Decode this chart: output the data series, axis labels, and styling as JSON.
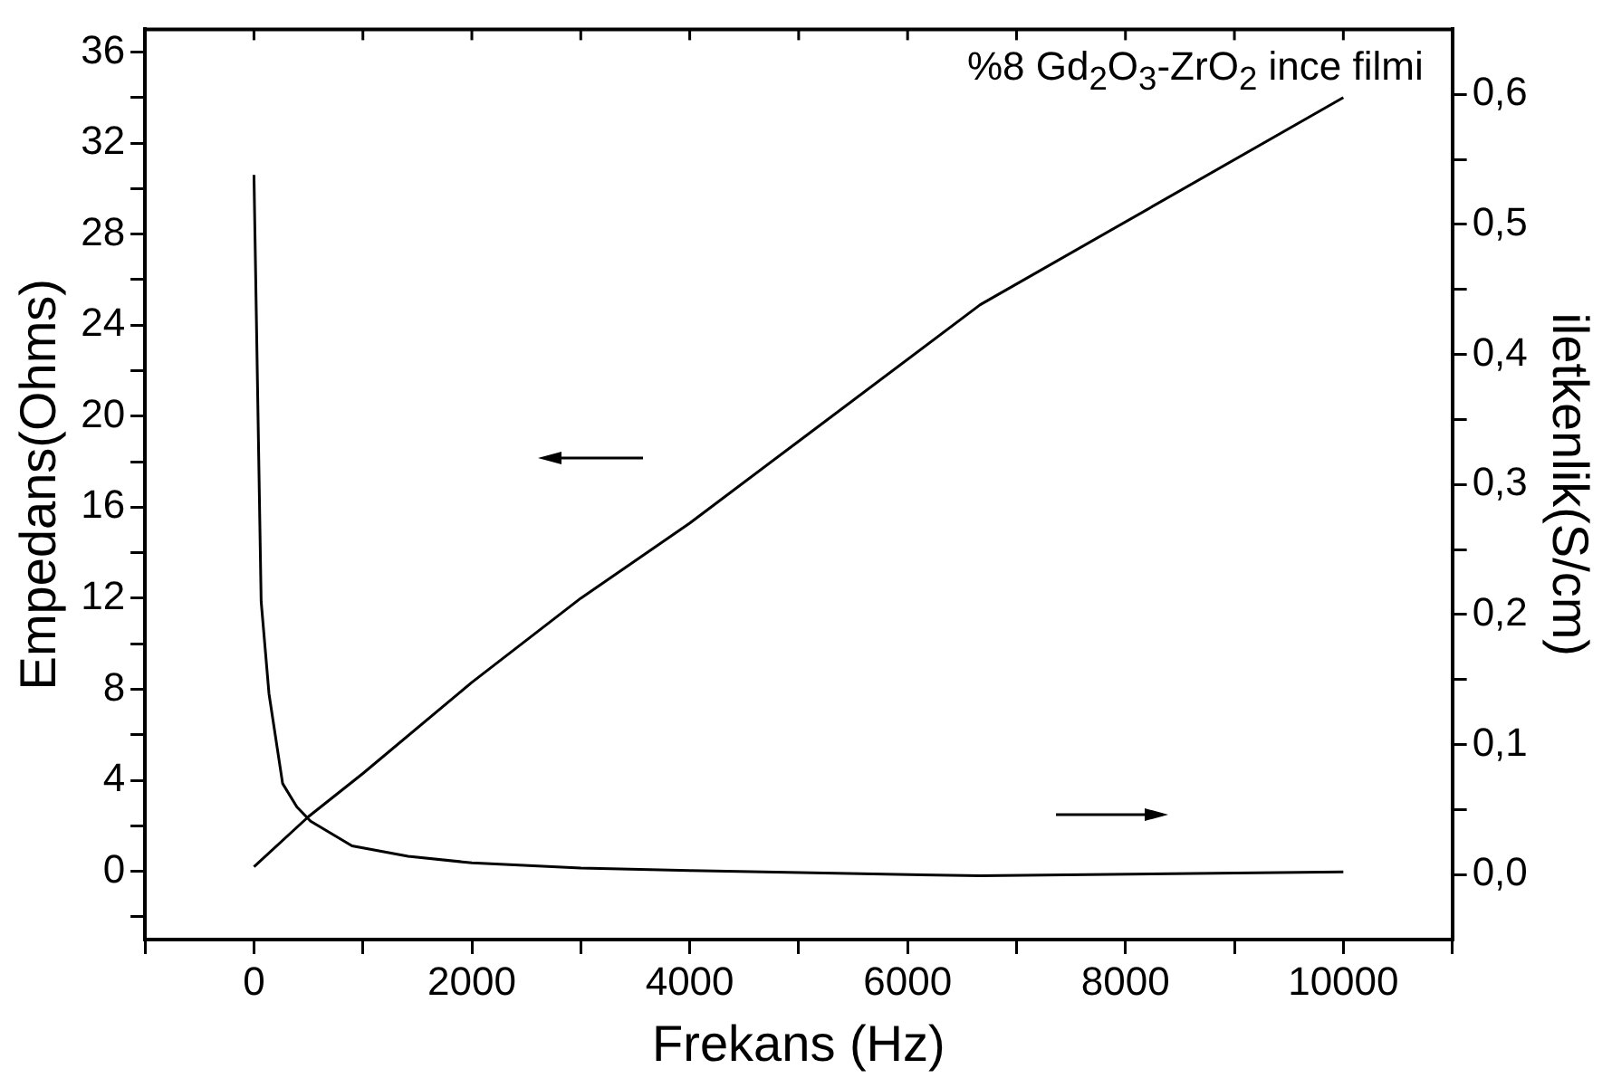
{
  "chart_data": {
    "type": "line",
    "xlabel": "Frekans (Hz)",
    "ylabel": "Empedans(Ohms)",
    "y2label": "iletkenlik(S/cm)",
    "annotations": [
      "%8 Gd$_{2}$O$_{3}$-ZrO$_{2}$ ince filmi"
    ],
    "xlim": [
      -1000,
      11000
    ],
    "xticks": [
      {
        "value": -1000,
        "label": null
      },
      0,
      {
        "value": 1000,
        "label": null
      },
      2000,
      {
        "value": 3000,
        "label": null
      },
      4000,
      {
        "value": 5000,
        "label": null
      },
      6000,
      {
        "value": 7000,
        "label": null
      },
      8000,
      {
        "value": 9000,
        "label": null
      },
      10000,
      {
        "value": 11000,
        "label": null
      }
    ],
    "ylim": [
      -3,
      37
    ],
    "yticks": [
      {
        "value": -2,
        "label": null
      },
      0,
      {
        "value": 2,
        "label": null
      },
      4,
      {
        "value": 6,
        "label": null
      },
      8,
      {
        "value": 10,
        "label": null
      },
      12,
      {
        "value": 14,
        "label": null
      },
      16,
      {
        "value": 18,
        "label": null
      },
      20,
      {
        "value": 22,
        "label": null
      },
      24,
      {
        "value": 26,
        "label": null
      },
      28,
      {
        "value": 30,
        "label": null
      },
      32,
      {
        "value": 34,
        "label": null
      },
      36
    ],
    "y2lim": [
      -0.05,
      0.65
    ],
    "y2ticks": [
      {
        "value": 0,
        "label": "0,0"
      },
      {
        "value": 0.05,
        "label": null
      },
      {
        "value": 0.1,
        "label": "0,1"
      },
      {
        "value": 0.15,
        "label": null
      },
      {
        "value": 0.2,
        "label": "0,2"
      },
      {
        "value": 0.25,
        "label": null
      },
      {
        "value": 0.3,
        "label": "0,3"
      },
      {
        "value": 0.35,
        "label": null
      },
      {
        "value": 0.4,
        "label": "0,4"
      },
      {
        "value": 0.45,
        "label": null
      },
      {
        "value": 0.5,
        "label": "0,5"
      },
      {
        "value": 0.55,
        "label": null
      },
      {
        "value": 0.6,
        "label": "0,6"
      }
    ],
    "grid": false,
    "legend": false,
    "marker": "none",
    "line_style": "solid",
    "series": [
      {
        "color": "#000000",
        "x": [
          0,
          500,
          1000,
          2000,
          3000,
          4000,
          5000,
          6667,
          10000
        ],
        "values": [
          0.2,
          2.4,
          4.3,
          8.3,
          12,
          15.3,
          18.9,
          24.9,
          34
        ]
      },
      {
        "color": "#000000",
        "axis": "y2",
        "x": [
          0,
          66,
          138,
          263,
          394,
          520,
          900,
          1415,
          2000,
          3000,
          4000,
          6667,
          10000
        ],
        "values": [
          0.538,
          0.21,
          0.139,
          0.07,
          0.052,
          0.041,
          0.022,
          0.014,
          0.009,
          0.005,
          0.003,
          -0.001,
          0.002
        ]
      }
    ]
  }
}
